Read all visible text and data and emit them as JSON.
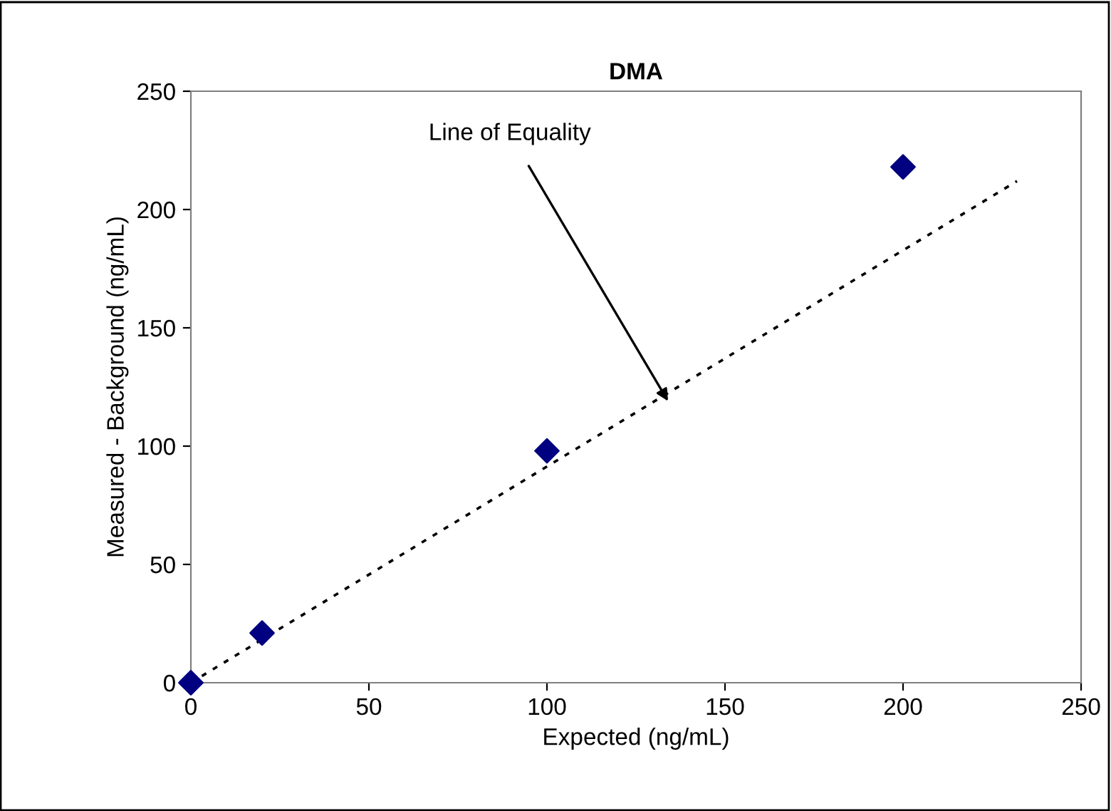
{
  "chart_data": {
    "type": "scatter",
    "title": "DMA",
    "xlabel": "Expected (ng/mL)",
    "ylabel": "Measured - Background (ng/mL)",
    "xlim": [
      0,
      250
    ],
    "ylim": [
      0,
      250
    ],
    "xticks": [
      0,
      50,
      100,
      150,
      200,
      250
    ],
    "yticks": [
      0,
      50,
      100,
      150,
      200,
      250
    ],
    "grid": false,
    "legend": false,
    "series": [
      {
        "color": "#000080",
        "marker": "diamond",
        "x": [
          0,
          20,
          100,
          200
        ],
        "values": [
          0,
          21,
          98,
          218
        ]
      },
      {
        "type": "line",
        "color": "#000000",
        "marker": "none",
        "line_style": "dotted",
        "x": [
          0,
          232
        ],
        "values": [
          0,
          212
        ]
      }
    ],
    "annotations": [
      {
        "text": "Line of Equality",
        "x": 134,
        "y": 119
      }
    ]
  }
}
